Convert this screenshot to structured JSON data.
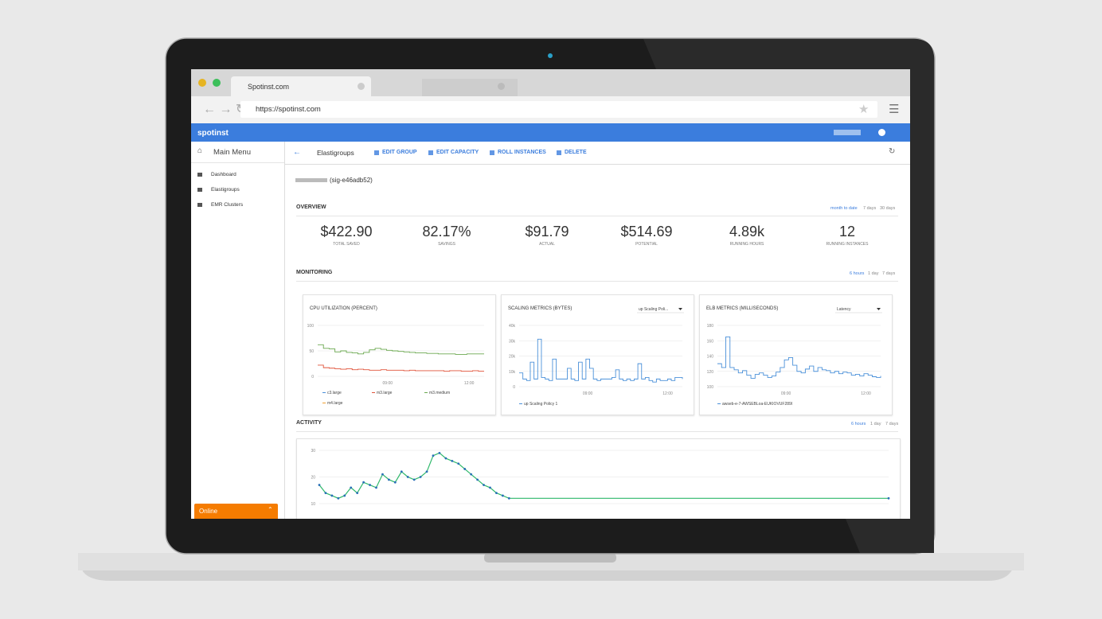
{
  "browser": {
    "tab_title": "Spotinst.com",
    "url": "https://spotinst.com"
  },
  "app": {
    "logo": "spotinst",
    "sidebar": {
      "title": "Main Menu",
      "items": [
        "Dashboard",
        "Elastigroups",
        "EMR Clusters"
      ],
      "status": "Online"
    },
    "toolbar": {
      "title": "Elastigroups",
      "actions": [
        "EDIT GROUP",
        "EDIT CAPACITY",
        "ROLL INSTANCES",
        "DELETE"
      ]
    },
    "group_id": "(sig-e46adb52)",
    "overview": {
      "title": "OVERVIEW",
      "ranges": [
        "month to date",
        "7 days",
        "30 days"
      ],
      "stats": [
        {
          "value": "$422.90",
          "label": "TOTAL SAVED"
        },
        {
          "value": "82.17%",
          "label": "SAVINGS"
        },
        {
          "value": "$91.79",
          "label": "ACTUAL"
        },
        {
          "value": "$514.69",
          "label": "POTENTIAL"
        },
        {
          "value": "4.89k",
          "label": "RUNNING HOURS"
        },
        {
          "value": "12",
          "label": "RUNNING INSTANCES"
        }
      ]
    },
    "monitoring": {
      "title": "MONITORING",
      "ranges": [
        "6 hours",
        "1 day",
        "7 days"
      ],
      "charts": [
        {
          "type": "line",
          "title": "CPU UTILIZATION (PERCENT)",
          "ylim": [
            0,
            100
          ],
          "yticks": [
            100,
            50,
            0
          ],
          "xtick_labels": [
            "09:00",
            "12:00"
          ],
          "series": [
            {
              "name": "c3.large",
              "color": "#4a90d9"
            },
            {
              "name": "m3.large",
              "color": "#e0533a",
              "values": [
                22,
                17,
                16,
                15,
                14,
                15,
                13,
                14,
                13,
                12,
                12,
                13,
                12,
                12,
                12,
                11,
                12,
                11,
                11,
                11,
                11,
                11,
                10,
                11,
                11,
                10,
                10,
                11,
                10,
                10
              ]
            },
            {
              "name": "m3.medium",
              "color": "#6aa84f",
              "values": [
                62,
                55,
                54,
                48,
                50,
                47,
                46,
                44,
                47,
                52,
                55,
                53,
                51,
                50,
                49,
                48,
                47,
                46,
                46,
                45,
                45,
                44,
                44,
                44,
                43,
                43,
                44,
                44,
                44,
                44
              ]
            },
            {
              "name": "m4.large",
              "color": "#f0a030"
            }
          ]
        },
        {
          "type": "line",
          "title": "SCALING METRICS (BYTES)",
          "select": "up Scaling Poli...",
          "ylim": [
            0,
            40000
          ],
          "yticks": [
            {
              "value": 40000,
              "label": "40k"
            },
            {
              "value": 30000,
              "label": "30k"
            },
            {
              "value": 20000,
              "label": "20k"
            },
            {
              "value": 10000,
              "label": "10k"
            },
            0
          ],
          "xtick_labels": [
            "09:00",
            "12:00"
          ],
          "series": [
            {
              "name": "up Scaling Policy 1",
              "color": "#4a90d9",
              "values": [
                9000,
                5000,
                4000,
                16000,
                5000,
                31000,
                6000,
                5000,
                4000,
                18000,
                5000,
                5000,
                5000,
                12000,
                5000,
                4000,
                16000,
                5000,
                18000,
                12000,
                5000,
                4000,
                5000,
                5000,
                5000,
                6000,
                11000,
                5000,
                4000,
                5000,
                4000,
                5000,
                15000,
                5000,
                6000,
                4000,
                3000,
                5000,
                4000,
                4000,
                5000,
                4000,
                6000,
                6000,
                5000
              ]
            }
          ]
        },
        {
          "type": "line",
          "title": "ELB METRICS (MILLISECONDS)",
          "select": "Latency",
          "ylim": [
            100,
            180
          ],
          "yticks": [
            180,
            160,
            140,
            120,
            100
          ],
          "xtick_labels": [
            "09:00",
            "12:00"
          ],
          "series": [
            {
              "name": "awseb-e-7-AWSEBLoa-EUKIOVUF289I",
              "color": "#4a90d9",
              "values": [
                130,
                125,
                165,
                125,
                122,
                118,
                121,
                115,
                111,
                116,
                118,
                115,
                112,
                114,
                119,
                125,
                135,
                138,
                128,
                120,
                118,
                123,
                127,
                120,
                125,
                122,
                121,
                118,
                120,
                117,
                119,
                118,
                115,
                116,
                114,
                117,
                115,
                113,
                112,
                114
              ]
            }
          ]
        }
      ]
    },
    "activity": {
      "title": "ACTIVITY",
      "ranges": [
        "6 hours",
        "1 day",
        "7 days"
      ],
      "chart": {
        "type": "line",
        "ylim": [
          0,
          30
        ],
        "yticks": [
          30,
          20,
          10
        ],
        "xlim": [
          0,
          90
        ],
        "x": [
          0,
          1,
          2,
          3,
          4,
          5,
          6,
          7,
          8,
          9,
          10,
          11,
          12,
          13,
          14,
          15,
          16,
          17,
          18,
          19,
          20,
          21,
          22,
          23,
          24,
          25,
          26,
          27,
          28,
          29,
          30,
          90
        ],
        "series": [
          {
            "color": "#2fb86b",
            "point_color": "#2a6fb8",
            "values": [
              17,
              14,
              13,
              12,
              13,
              16,
              14,
              18,
              17,
              16,
              21,
              19,
              18,
              22,
              20,
              19,
              20,
              22,
              28,
              29,
              27,
              26,
              25,
              23,
              21,
              19,
              17,
              16,
              14,
              13,
              12,
              12
            ]
          }
        ]
      }
    }
  }
}
